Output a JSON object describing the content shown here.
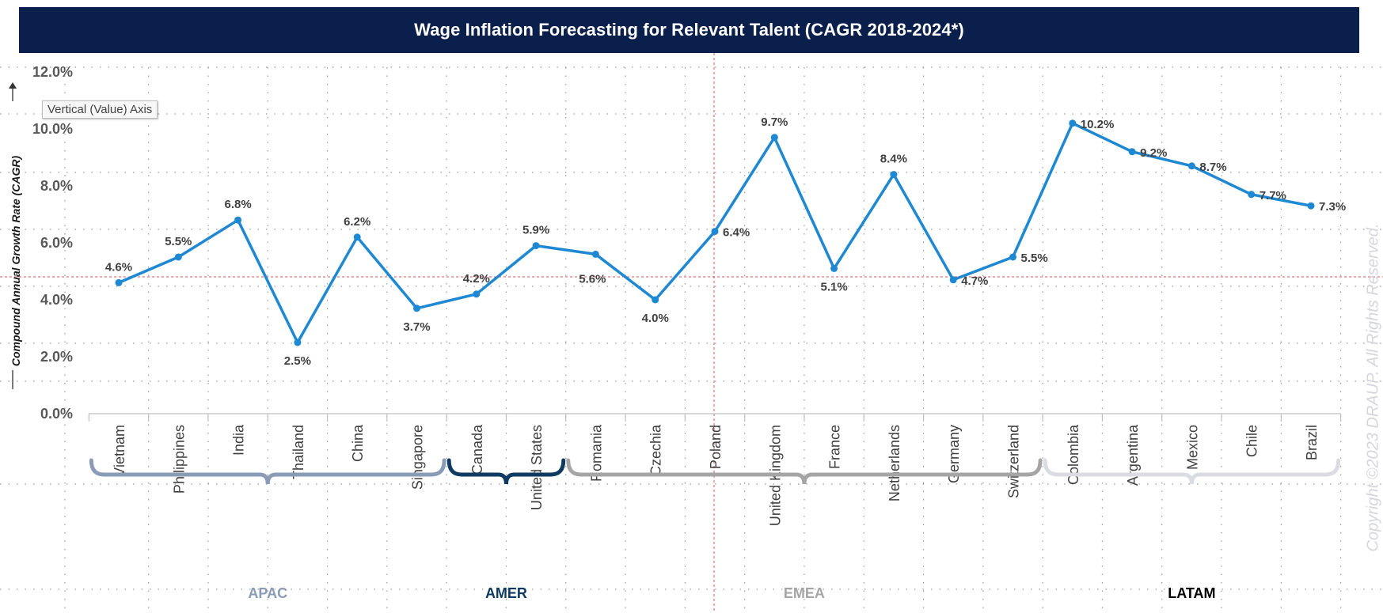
{
  "title": "Wage Inflation Forecasting for Relevant Talent (CAGR 2018-2024*)",
  "tooltip": "Vertical (Value) Axis",
  "watermark": "Copyright ©2023 DRAUP. All Rights Reserved.",
  "colors": {
    "title_bg": "#0b1f4d",
    "line": "#1e88d2",
    "apac": "#8a9bb5",
    "amer": "#0f3a61",
    "emea": "#a5a5a5",
    "latam": "#d9dce1"
  },
  "chart_data": {
    "type": "line",
    "title": "Wage Inflation Forecasting for Relevant Talent (CAGR 2018-2024*)",
    "ylabel": "Compound Annual Growth Rate (CAGR)",
    "xlabel": "",
    "ylim": [
      0,
      12
    ],
    "yticks": [
      "0.0%",
      "2.0%",
      "4.0%",
      "6.0%",
      "8.0%",
      "10.0%",
      "12.0%"
    ],
    "grid": true,
    "categories": [
      "Vietnam",
      "Philippines",
      "India",
      "Thailand",
      "China",
      "Singapore",
      "Canada",
      "United States",
      "Romania",
      "Czechia",
      "Poland",
      "United Kingdom",
      "France",
      "Netherlands",
      "Germany",
      "Switzerland",
      "Colombia",
      "Argentina",
      "Mexico",
      "Chile",
      "Brazil"
    ],
    "series": [
      {
        "values": [
          4.6,
          5.5,
          6.8,
          2.5,
          6.2,
          3.7,
          4.2,
          5.9,
          5.6,
          4.0,
          6.4,
          9.7,
          5.1,
          8.4,
          4.7,
          5.5,
          10.2,
          9.2,
          8.7,
          7.7,
          7.3
        ]
      }
    ],
    "data_labels": [
      "4.6%",
      "5.5%",
      "6.8%",
      "2.5%",
      "6.2%",
      "3.7%",
      "4.2%",
      "5.9%",
      "5.6%",
      "4.0%",
      "6.4%",
      "9.7%",
      "5.1%",
      "8.4%",
      "4.7%",
      "5.5%",
      "10.2%",
      "9.2%",
      "8.7%",
      "7.7%",
      "7.3%"
    ],
    "regions": [
      {
        "name": "APAC",
        "first": 0,
        "last": 5
      },
      {
        "name": "AMER",
        "first": 6,
        "last": 7
      },
      {
        "name": "EMEA",
        "first": 8,
        "last": 15
      },
      {
        "name": "LATAM",
        "first": 16,
        "last": 20
      }
    ]
  }
}
